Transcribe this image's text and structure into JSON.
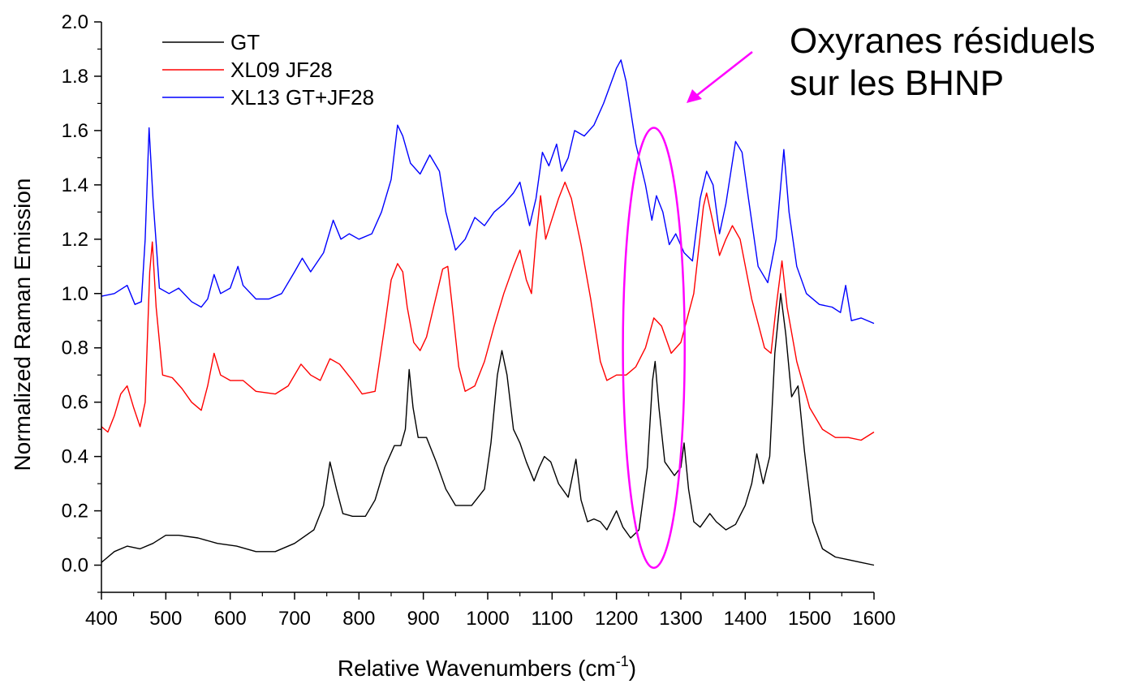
{
  "chart_data": {
    "type": "line",
    "xlabel": "Relative Wavenumbers (cm",
    "xlabel_sup": "-1",
    "xlabel_close": ")",
    "ylabel": "Normalized Raman Emission",
    "xlim": [
      400,
      1600
    ],
    "ylim": [
      -0.1,
      2.0
    ],
    "xticks": [
      400,
      500,
      600,
      700,
      800,
      900,
      1000,
      1100,
      1200,
      1300,
      1400,
      1500,
      1600
    ],
    "yticks": [
      "0.0",
      "0.2",
      "0.4",
      "0.6",
      "0.8",
      "1.0",
      "1.2",
      "1.4",
      "1.6",
      "1.8",
      "2.0"
    ],
    "legend_position": "top-left",
    "grid": false,
    "series": [
      {
        "name": "GT",
        "color": "#000000",
        "points": [
          [
            400,
            0.01
          ],
          [
            420,
            0.05
          ],
          [
            440,
            0.07
          ],
          [
            460,
            0.06
          ],
          [
            480,
            0.08
          ],
          [
            500,
            0.11
          ],
          [
            520,
            0.11
          ],
          [
            550,
            0.1
          ],
          [
            580,
            0.08
          ],
          [
            610,
            0.07
          ],
          [
            640,
            0.05
          ],
          [
            670,
            0.05
          ],
          [
            700,
            0.08
          ],
          [
            730,
            0.13
          ],
          [
            745,
            0.22
          ],
          [
            755,
            0.38
          ],
          [
            765,
            0.28
          ],
          [
            775,
            0.19
          ],
          [
            790,
            0.18
          ],
          [
            810,
            0.18
          ],
          [
            825,
            0.24
          ],
          [
            840,
            0.36
          ],
          [
            855,
            0.44
          ],
          [
            865,
            0.44
          ],
          [
            872,
            0.5
          ],
          [
            878,
            0.72
          ],
          [
            884,
            0.58
          ],
          [
            892,
            0.47
          ],
          [
            905,
            0.47
          ],
          [
            920,
            0.38
          ],
          [
            935,
            0.28
          ],
          [
            950,
            0.22
          ],
          [
            975,
            0.22
          ],
          [
            995,
            0.28
          ],
          [
            1005,
            0.45
          ],
          [
            1015,
            0.7
          ],
          [
            1022,
            0.79
          ],
          [
            1030,
            0.7
          ],
          [
            1040,
            0.5
          ],
          [
            1050,
            0.45
          ],
          [
            1060,
            0.38
          ],
          [
            1072,
            0.31
          ],
          [
            1080,
            0.36
          ],
          [
            1088,
            0.4
          ],
          [
            1098,
            0.38
          ],
          [
            1110,
            0.3
          ],
          [
            1125,
            0.25
          ],
          [
            1137,
            0.39
          ],
          [
            1145,
            0.24
          ],
          [
            1155,
            0.16
          ],
          [
            1165,
            0.17
          ],
          [
            1175,
            0.16
          ],
          [
            1185,
            0.13
          ],
          [
            1200,
            0.2
          ],
          [
            1210,
            0.14
          ],
          [
            1222,
            0.1
          ],
          [
            1235,
            0.13
          ],
          [
            1248,
            0.36
          ],
          [
            1256,
            0.68
          ],
          [
            1260,
            0.75
          ],
          [
            1266,
            0.58
          ],
          [
            1275,
            0.38
          ],
          [
            1290,
            0.33
          ],
          [
            1300,
            0.36
          ],
          [
            1305,
            0.45
          ],
          [
            1312,
            0.28
          ],
          [
            1320,
            0.16
          ],
          [
            1330,
            0.14
          ],
          [
            1345,
            0.19
          ],
          [
            1355,
            0.16
          ],
          [
            1370,
            0.13
          ],
          [
            1385,
            0.15
          ],
          [
            1400,
            0.22
          ],
          [
            1410,
            0.3
          ],
          [
            1418,
            0.41
          ],
          [
            1428,
            0.3
          ],
          [
            1438,
            0.4
          ],
          [
            1446,
            0.78
          ],
          [
            1455,
            1.0
          ],
          [
            1463,
            0.85
          ],
          [
            1472,
            0.62
          ],
          [
            1482,
            0.66
          ],
          [
            1492,
            0.42
          ],
          [
            1505,
            0.16
          ],
          [
            1520,
            0.06
          ],
          [
            1540,
            0.03
          ],
          [
            1560,
            0.02
          ],
          [
            1580,
            0.01
          ],
          [
            1600,
            0.0
          ]
        ]
      },
      {
        "name": "XL09 JF28",
        "color": "#ff0000",
        "points": [
          [
            400,
            0.51
          ],
          [
            410,
            0.49
          ],
          [
            420,
            0.55
          ],
          [
            430,
            0.63
          ],
          [
            440,
            0.66
          ],
          [
            450,
            0.58
          ],
          [
            460,
            0.51
          ],
          [
            468,
            0.6
          ],
          [
            475,
            1.08
          ],
          [
            479,
            1.19
          ],
          [
            485,
            0.95
          ],
          [
            495,
            0.7
          ],
          [
            510,
            0.69
          ],
          [
            525,
            0.65
          ],
          [
            540,
            0.6
          ],
          [
            555,
            0.57
          ],
          [
            565,
            0.66
          ],
          [
            575,
            0.78
          ],
          [
            585,
            0.7
          ],
          [
            600,
            0.68
          ],
          [
            620,
            0.68
          ],
          [
            640,
            0.64
          ],
          [
            670,
            0.63
          ],
          [
            690,
            0.66
          ],
          [
            710,
            0.74
          ],
          [
            725,
            0.7
          ],
          [
            740,
            0.68
          ],
          [
            755,
            0.76
          ],
          [
            770,
            0.74
          ],
          [
            790,
            0.68
          ],
          [
            805,
            0.63
          ],
          [
            825,
            0.64
          ],
          [
            840,
            0.88
          ],
          [
            850,
            1.05
          ],
          [
            860,
            1.11
          ],
          [
            868,
            1.08
          ],
          [
            875,
            0.95
          ],
          [
            885,
            0.82
          ],
          [
            895,
            0.79
          ],
          [
            905,
            0.84
          ],
          [
            918,
            0.97
          ],
          [
            930,
            1.09
          ],
          [
            938,
            1.1
          ],
          [
            945,
            0.95
          ],
          [
            955,
            0.73
          ],
          [
            965,
            0.64
          ],
          [
            980,
            0.66
          ],
          [
            995,
            0.75
          ],
          [
            1010,
            0.88
          ],
          [
            1025,
            1.0
          ],
          [
            1040,
            1.1
          ],
          [
            1050,
            1.16
          ],
          [
            1060,
            1.05
          ],
          [
            1068,
            1.0
          ],
          [
            1075,
            1.2
          ],
          [
            1082,
            1.36
          ],
          [
            1090,
            1.2
          ],
          [
            1098,
            1.26
          ],
          [
            1110,
            1.35
          ],
          [
            1120,
            1.41
          ],
          [
            1130,
            1.35
          ],
          [
            1145,
            1.18
          ],
          [
            1160,
            0.98
          ],
          [
            1175,
            0.75
          ],
          [
            1185,
            0.68
          ],
          [
            1200,
            0.7
          ],
          [
            1215,
            0.7
          ],
          [
            1230,
            0.73
          ],
          [
            1245,
            0.8
          ],
          [
            1258,
            0.91
          ],
          [
            1270,
            0.88
          ],
          [
            1285,
            0.78
          ],
          [
            1300,
            0.82
          ],
          [
            1320,
            1.0
          ],
          [
            1335,
            1.32
          ],
          [
            1340,
            1.37
          ],
          [
            1350,
            1.26
          ],
          [
            1360,
            1.14
          ],
          [
            1370,
            1.2
          ],
          [
            1380,
            1.25
          ],
          [
            1392,
            1.2
          ],
          [
            1410,
            0.98
          ],
          [
            1430,
            0.8
          ],
          [
            1440,
            0.78
          ],
          [
            1448,
            0.95
          ],
          [
            1457,
            1.12
          ],
          [
            1465,
            0.95
          ],
          [
            1480,
            0.75
          ],
          [
            1500,
            0.58
          ],
          [
            1520,
            0.5
          ],
          [
            1540,
            0.47
          ],
          [
            1560,
            0.47
          ],
          [
            1580,
            0.46
          ],
          [
            1600,
            0.49
          ]
        ]
      },
      {
        "name": "XL13 GT+JF28",
        "color": "#0000ff",
        "points": [
          [
            400,
            0.99
          ],
          [
            420,
            1.0
          ],
          [
            440,
            1.03
          ],
          [
            452,
            0.96
          ],
          [
            462,
            0.97
          ],
          [
            468,
            1.2
          ],
          [
            474,
            1.61
          ],
          [
            480,
            1.35
          ],
          [
            490,
            1.02
          ],
          [
            505,
            1.0
          ],
          [
            520,
            1.02
          ],
          [
            540,
            0.97
          ],
          [
            555,
            0.95
          ],
          [
            565,
            0.98
          ],
          [
            575,
            1.07
          ],
          [
            585,
            1.0
          ],
          [
            600,
            1.02
          ],
          [
            612,
            1.1
          ],
          [
            620,
            1.03
          ],
          [
            640,
            0.98
          ],
          [
            660,
            0.98
          ],
          [
            680,
            1.0
          ],
          [
            700,
            1.08
          ],
          [
            712,
            1.13
          ],
          [
            725,
            1.08
          ],
          [
            745,
            1.15
          ],
          [
            760,
            1.27
          ],
          [
            772,
            1.2
          ],
          [
            785,
            1.22
          ],
          [
            800,
            1.2
          ],
          [
            820,
            1.22
          ],
          [
            835,
            1.3
          ],
          [
            850,
            1.42
          ],
          [
            860,
            1.62
          ],
          [
            868,
            1.58
          ],
          [
            880,
            1.48
          ],
          [
            895,
            1.44
          ],
          [
            910,
            1.51
          ],
          [
            925,
            1.45
          ],
          [
            935,
            1.3
          ],
          [
            950,
            1.16
          ],
          [
            965,
            1.2
          ],
          [
            980,
            1.28
          ],
          [
            995,
            1.25
          ],
          [
            1010,
            1.3
          ],
          [
            1025,
            1.33
          ],
          [
            1040,
            1.37
          ],
          [
            1050,
            1.41
          ],
          [
            1065,
            1.25
          ],
          [
            1075,
            1.35
          ],
          [
            1085,
            1.52
          ],
          [
            1095,
            1.47
          ],
          [
            1107,
            1.55
          ],
          [
            1115,
            1.45
          ],
          [
            1125,
            1.5
          ],
          [
            1135,
            1.6
          ],
          [
            1150,
            1.58
          ],
          [
            1165,
            1.62
          ],
          [
            1180,
            1.7
          ],
          [
            1200,
            1.83
          ],
          [
            1207,
            1.86
          ],
          [
            1215,
            1.78
          ],
          [
            1230,
            1.55
          ],
          [
            1245,
            1.4
          ],
          [
            1255,
            1.27
          ],
          [
            1262,
            1.36
          ],
          [
            1272,
            1.3
          ],
          [
            1282,
            1.18
          ],
          [
            1292,
            1.22
          ],
          [
            1305,
            1.15
          ],
          [
            1318,
            1.12
          ],
          [
            1330,
            1.35
          ],
          [
            1340,
            1.45
          ],
          [
            1350,
            1.4
          ],
          [
            1360,
            1.22
          ],
          [
            1370,
            1.33
          ],
          [
            1385,
            1.56
          ],
          [
            1395,
            1.52
          ],
          [
            1405,
            1.35
          ],
          [
            1420,
            1.1
          ],
          [
            1435,
            1.04
          ],
          [
            1448,
            1.2
          ],
          [
            1460,
            1.53
          ],
          [
            1468,
            1.3
          ],
          [
            1480,
            1.1
          ],
          [
            1495,
            1.0
          ],
          [
            1515,
            0.96
          ],
          [
            1535,
            0.95
          ],
          [
            1548,
            0.93
          ],
          [
            1556,
            1.03
          ],
          [
            1565,
            0.9
          ],
          [
            1580,
            0.91
          ],
          [
            1600,
            0.89
          ]
        ]
      }
    ],
    "annotation": {
      "line1": "Oxyranes résiduels",
      "line2": "sur les BHNP",
      "color": "#ff00ff",
      "ellipse_center": [
        1258,
        0.8
      ],
      "ellipse_radius": [
        48,
        0.81
      ]
    }
  }
}
